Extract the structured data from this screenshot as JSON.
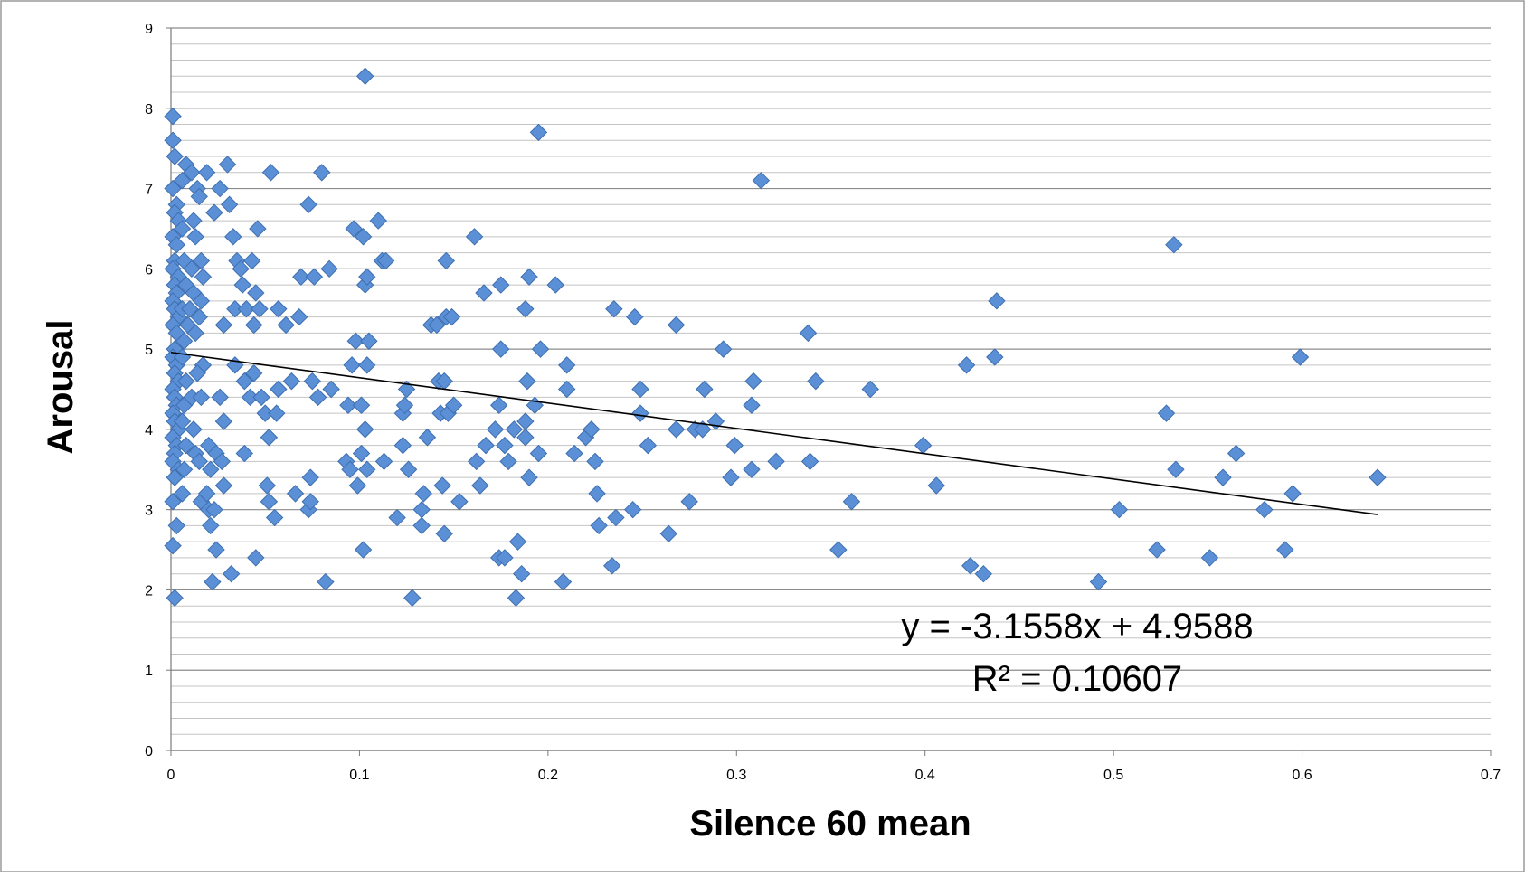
{
  "chart_data": {
    "type": "scatter",
    "xlabel": "Silence 60 mean",
    "ylabel": "Arousal",
    "xlim": [
      0,
      0.7
    ],
    "ylim": [
      0,
      9
    ],
    "x_ticks": [
      "0",
      "0.1",
      "0.2",
      "0.3",
      "0.4",
      "0.5",
      "0.6",
      "0.7"
    ],
    "y_ticks": [
      "0",
      "1",
      "2",
      "3",
      "4",
      "5",
      "6",
      "7",
      "8",
      "9"
    ],
    "grid": "horizontal",
    "marker_color": "#5b8fd6",
    "trendline": {
      "slope": -3.1558,
      "intercept": 4.9588,
      "x_range": [
        0,
        0.64
      ]
    },
    "annotations": [
      "y = -3.1558x + 4.9588",
      "R² = 0.10607"
    ],
    "series": [
      {
        "points": [
          [
            0.001,
            7.9
          ],
          [
            0.001,
            7.6
          ],
          [
            0.002,
            7.4
          ],
          [
            0.001,
            7.0
          ],
          [
            0.003,
            6.8
          ],
          [
            0.002,
            6.7
          ],
          [
            0.004,
            6.6
          ],
          [
            0.001,
            6.4
          ],
          [
            0.003,
            6.3
          ],
          [
            0.002,
            6.1
          ],
          [
            0.001,
            6.0
          ],
          [
            0.004,
            5.9
          ],
          [
            0.002,
            5.8
          ],
          [
            0.003,
            5.7
          ],
          [
            0.001,
            5.6
          ],
          [
            0.002,
            5.5
          ],
          [
            0.004,
            5.4
          ],
          [
            0.001,
            5.3
          ],
          [
            0.003,
            5.2
          ],
          [
            0.002,
            5.0
          ],
          [
            0.001,
            4.9
          ],
          [
            0.003,
            4.8
          ],
          [
            0.002,
            4.7
          ],
          [
            0.004,
            4.6
          ],
          [
            0.001,
            4.5
          ],
          [
            0.002,
            4.4
          ],
          [
            0.003,
            4.3
          ],
          [
            0.001,
            4.2
          ],
          [
            0.002,
            4.1
          ],
          [
            0.004,
            4.0
          ],
          [
            0.001,
            3.9
          ],
          [
            0.003,
            3.8
          ],
          [
            0.002,
            3.7
          ],
          [
            0.001,
            3.6
          ],
          [
            0.004,
            3.5
          ],
          [
            0.002,
            3.4
          ],
          [
            0.001,
            3.1
          ],
          [
            0.003,
            2.8
          ],
          [
            0.001,
            2.55
          ],
          [
            0.002,
            1.9
          ],
          [
            0.006,
            7.1
          ],
          [
            0.008,
            7.3
          ],
          [
            0.006,
            6.5
          ],
          [
            0.007,
            6.1
          ],
          [
            0.008,
            5.8
          ],
          [
            0.006,
            5.5
          ],
          [
            0.009,
            5.3
          ],
          [
            0.007,
            5.1
          ],
          [
            0.006,
            4.9
          ],
          [
            0.008,
            4.6
          ],
          [
            0.007,
            4.3
          ],
          [
            0.006,
            4.1
          ],
          [
            0.008,
            3.8
          ],
          [
            0.007,
            3.5
          ],
          [
            0.006,
            3.2
          ],
          [
            0.011,
            7.2
          ],
          [
            0.012,
            6.6
          ],
          [
            0.013,
            6.4
          ],
          [
            0.011,
            6.0
          ],
          [
            0.012,
            5.7
          ],
          [
            0.01,
            5.5
          ],
          [
            0.013,
            5.2
          ],
          [
            0.011,
            4.4
          ],
          [
            0.012,
            4.0
          ],
          [
            0.013,
            3.7
          ],
          [
            0.014,
            7.0
          ],
          [
            0.015,
            6.9
          ],
          [
            0.016,
            6.1
          ],
          [
            0.017,
            5.9
          ],
          [
            0.016,
            5.6
          ],
          [
            0.015,
            5.4
          ],
          [
            0.017,
            4.8
          ],
          [
            0.014,
            4.7
          ],
          [
            0.016,
            4.4
          ],
          [
            0.015,
            3.6
          ],
          [
            0.016,
            3.1
          ],
          [
            0.019,
            7.2
          ],
          [
            0.02,
            3.8
          ],
          [
            0.021,
            3.5
          ],
          [
            0.019,
            3.2
          ],
          [
            0.02,
            3.0
          ],
          [
            0.021,
            2.8
          ],
          [
            0.022,
            2.1
          ],
          [
            0.023,
            6.7
          ],
          [
            0.024,
            3.7
          ],
          [
            0.023,
            3.0
          ],
          [
            0.024,
            2.5
          ],
          [
            0.026,
            7.0
          ],
          [
            0.026,
            4.4
          ],
          [
            0.027,
            3.6
          ],
          [
            0.028,
            5.3
          ],
          [
            0.028,
            4.1
          ],
          [
            0.028,
            3.3
          ],
          [
            0.03,
            7.3
          ],
          [
            0.031,
            6.8
          ],
          [
            0.032,
            2.2
          ],
          [
            0.033,
            6.4
          ],
          [
            0.034,
            5.5
          ],
          [
            0.034,
            4.8
          ],
          [
            0.035,
            6.1
          ],
          [
            0.037,
            6.0
          ],
          [
            0.038,
            5.8
          ],
          [
            0.039,
            3.7
          ],
          [
            0.039,
            4.6
          ],
          [
            0.04,
            5.5
          ],
          [
            0.042,
            4.4
          ],
          [
            0.043,
            6.1
          ],
          [
            0.044,
            5.3
          ],
          [
            0.044,
            4.7
          ],
          [
            0.045,
            5.7
          ],
          [
            0.045,
            2.4
          ],
          [
            0.046,
            6.5
          ],
          [
            0.047,
            5.5
          ],
          [
            0.048,
            4.4
          ],
          [
            0.05,
            4.2
          ],
          [
            0.051,
            3.3
          ],
          [
            0.052,
            3.1
          ],
          [
            0.052,
            3.9
          ],
          [
            0.053,
            7.2
          ],
          [
            0.055,
            2.9
          ],
          [
            0.056,
            4.2
          ],
          [
            0.057,
            5.5
          ],
          [
            0.057,
            4.5
          ],
          [
            0.061,
            5.3
          ],
          [
            0.064,
            4.6
          ],
          [
            0.066,
            3.2
          ],
          [
            0.068,
            5.4
          ],
          [
            0.069,
            5.9
          ],
          [
            0.073,
            6.8
          ],
          [
            0.073,
            3.0
          ],
          [
            0.074,
            3.1
          ],
          [
            0.074,
            3.4
          ],
          [
            0.075,
            4.6
          ],
          [
            0.076,
            5.9
          ],
          [
            0.078,
            4.4
          ],
          [
            0.08,
            7.2
          ],
          [
            0.082,
            2.1
          ],
          [
            0.084,
            6.0
          ],
          [
            0.085,
            4.5
          ],
          [
            0.093,
            3.6
          ],
          [
            0.094,
            4.3
          ],
          [
            0.095,
            3.5
          ],
          [
            0.096,
            4.8
          ],
          [
            0.097,
            6.5
          ],
          [
            0.098,
            5.1
          ],
          [
            0.099,
            3.3
          ],
          [
            0.101,
            4.3
          ],
          [
            0.101,
            3.7
          ],
          [
            0.102,
            2.5
          ],
          [
            0.102,
            6.4
          ],
          [
            0.103,
            8.4
          ],
          [
            0.103,
            5.8
          ],
          [
            0.103,
            4.0
          ],
          [
            0.104,
            4.8
          ],
          [
            0.104,
            3.5
          ],
          [
            0.104,
            5.9
          ],
          [
            0.105,
            5.1
          ],
          [
            0.11,
            6.6
          ],
          [
            0.112,
            6.1
          ],
          [
            0.113,
            3.6
          ],
          [
            0.114,
            6.1
          ],
          [
            0.12,
            2.9
          ],
          [
            0.123,
            4.2
          ],
          [
            0.123,
            3.8
          ],
          [
            0.124,
            4.3
          ],
          [
            0.125,
            4.5
          ],
          [
            0.126,
            3.5
          ],
          [
            0.128,
            1.9
          ],
          [
            0.133,
            3.0
          ],
          [
            0.133,
            2.8
          ],
          [
            0.134,
            3.2
          ],
          [
            0.136,
            3.9
          ],
          [
            0.138,
            5.3
          ],
          [
            0.141,
            5.3
          ],
          [
            0.142,
            4.6
          ],
          [
            0.143,
            4.2
          ],
          [
            0.144,
            3.3
          ],
          [
            0.145,
            4.6
          ],
          [
            0.145,
            2.7
          ],
          [
            0.146,
            5.4
          ],
          [
            0.146,
            6.1
          ],
          [
            0.147,
            4.2
          ],
          [
            0.149,
            5.4
          ],
          [
            0.15,
            4.3
          ],
          [
            0.153,
            3.1
          ],
          [
            0.161,
            6.4
          ],
          [
            0.162,
            3.6
          ],
          [
            0.164,
            3.3
          ],
          [
            0.166,
            5.7
          ],
          [
            0.167,
            3.8
          ],
          [
            0.172,
            4.0
          ],
          [
            0.174,
            4.3
          ],
          [
            0.174,
            2.4
          ],
          [
            0.175,
            5.0
          ],
          [
            0.175,
            5.8
          ],
          [
            0.177,
            2.4
          ],
          [
            0.177,
            3.8
          ],
          [
            0.179,
            3.6
          ],
          [
            0.182,
            4.0
          ],
          [
            0.183,
            1.9
          ],
          [
            0.184,
            2.6
          ],
          [
            0.186,
            2.2
          ],
          [
            0.188,
            3.9
          ],
          [
            0.188,
            4.1
          ],
          [
            0.188,
            5.5
          ],
          [
            0.189,
            4.6
          ],
          [
            0.19,
            5.9
          ],
          [
            0.19,
            3.4
          ],
          [
            0.193,
            4.3
          ],
          [
            0.195,
            3.7
          ],
          [
            0.195,
            7.7
          ],
          [
            0.196,
            5.0
          ],
          [
            0.204,
            5.8
          ],
          [
            0.208,
            2.1
          ],
          [
            0.21,
            4.8
          ],
          [
            0.21,
            4.5
          ],
          [
            0.214,
            3.7
          ],
          [
            0.22,
            3.9
          ],
          [
            0.223,
            4.0
          ],
          [
            0.225,
            3.6
          ],
          [
            0.226,
            3.2
          ],
          [
            0.227,
            2.8
          ],
          [
            0.234,
            2.3
          ],
          [
            0.235,
            5.5
          ],
          [
            0.236,
            2.9
          ],
          [
            0.245,
            3.0
          ],
          [
            0.246,
            5.4
          ],
          [
            0.249,
            4.5
          ],
          [
            0.249,
            4.2
          ],
          [
            0.253,
            3.8
          ],
          [
            0.264,
            2.7
          ],
          [
            0.268,
            5.3
          ],
          [
            0.268,
            4.0
          ],
          [
            0.275,
            3.1
          ],
          [
            0.278,
            4.0
          ],
          [
            0.282,
            4.0
          ],
          [
            0.283,
            4.5
          ],
          [
            0.289,
            4.1
          ],
          [
            0.293,
            5.0
          ],
          [
            0.297,
            3.4
          ],
          [
            0.299,
            3.8
          ],
          [
            0.308,
            3.5
          ],
          [
            0.308,
            4.3
          ],
          [
            0.309,
            4.6
          ],
          [
            0.313,
            7.1
          ],
          [
            0.321,
            3.6
          ],
          [
            0.338,
            5.2
          ],
          [
            0.339,
            3.6
          ],
          [
            0.342,
            4.6
          ],
          [
            0.354,
            2.5
          ],
          [
            0.361,
            3.1
          ],
          [
            0.371,
            4.5
          ],
          [
            0.399,
            3.8
          ],
          [
            0.406,
            3.3
          ],
          [
            0.422,
            4.8
          ],
          [
            0.424,
            2.3
          ],
          [
            0.431,
            2.2
          ],
          [
            0.437,
            4.9
          ],
          [
            0.438,
            5.6
          ],
          [
            0.492,
            2.1
          ],
          [
            0.503,
            3.0
          ],
          [
            0.523,
            2.5
          ],
          [
            0.528,
            4.2
          ],
          [
            0.532,
            6.3
          ],
          [
            0.533,
            3.5
          ],
          [
            0.551,
            2.4
          ],
          [
            0.558,
            3.4
          ],
          [
            0.565,
            3.7
          ],
          [
            0.58,
            3.0
          ],
          [
            0.591,
            2.5
          ],
          [
            0.595,
            3.2
          ],
          [
            0.599,
            4.9
          ],
          [
            0.64,
            3.4
          ]
        ]
      }
    ]
  }
}
